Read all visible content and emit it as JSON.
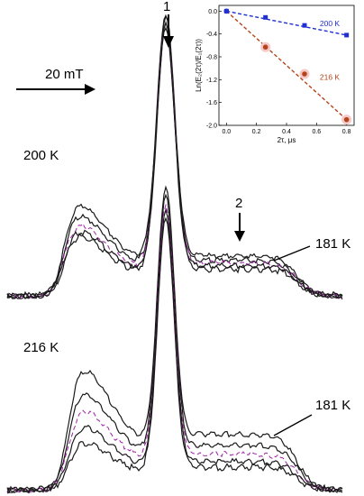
{
  "figure": {
    "marker_1": "1",
    "marker_2": "2",
    "scale_bar": "20 mT",
    "upper_temp": "200 K",
    "lower_temp": "216 K",
    "upper_ref": "181 K",
    "lower_ref": "181 K"
  },
  "colors": {
    "trace_dark": "#1a1a1a",
    "trace_purple": "#a020a8",
    "fit_200": "#1f2fd0",
    "fit_216": "#b5441a",
    "marker_216": "#b5441a",
    "marker_216_halo": "#f6c8c8"
  },
  "chart_data": [
    {
      "type": "line",
      "description_source": "EPR spectra traces; stacked echo-detected spectra at several delay times",
      "panels": [
        {
          "temperature": "200 K",
          "reference": "181 K",
          "n_traces": 5
        },
        {
          "temperature": "216 K",
          "reference": "181 K",
          "n_traces": 5
        }
      ],
      "annotations": [
        "1",
        "2",
        "20 mT"
      ]
    },
    {
      "type": "scatter",
      "xlabel": "2τ, μs",
      "ylabel": "Ln(E₂(2τ)/E₁(2τ))",
      "xlim": [
        -0.05,
        0.85
      ],
      "ylim": [
        -2.0,
        0.1
      ],
      "xticks": [
        "0.0",
        "0.2",
        "0.4",
        "0.6",
        "0.8"
      ],
      "yticks": [
        "0.0",
        "-0.4",
        "-0.8",
        "-1.2",
        "-1.6",
        "-2.0"
      ],
      "series": [
        {
          "name": "200 K",
          "x": [
            0.0,
            0.26,
            0.52,
            0.8
          ],
          "y": [
            0.0,
            -0.11,
            -0.25,
            -0.42
          ]
        },
        {
          "name": "216 K",
          "x": [
            0.0,
            0.26,
            0.52,
            0.8
          ],
          "y": [
            0.0,
            -0.63,
            -1.1,
            -1.9
          ]
        }
      ],
      "fits": [
        {
          "series": "200 K",
          "x": [
            0.0,
            0.8
          ],
          "y": [
            0.0,
            -0.42
          ]
        },
        {
          "series": "216 K",
          "x": [
            0.0,
            0.8
          ],
          "y": [
            0.0,
            -1.9
          ]
        }
      ]
    }
  ]
}
